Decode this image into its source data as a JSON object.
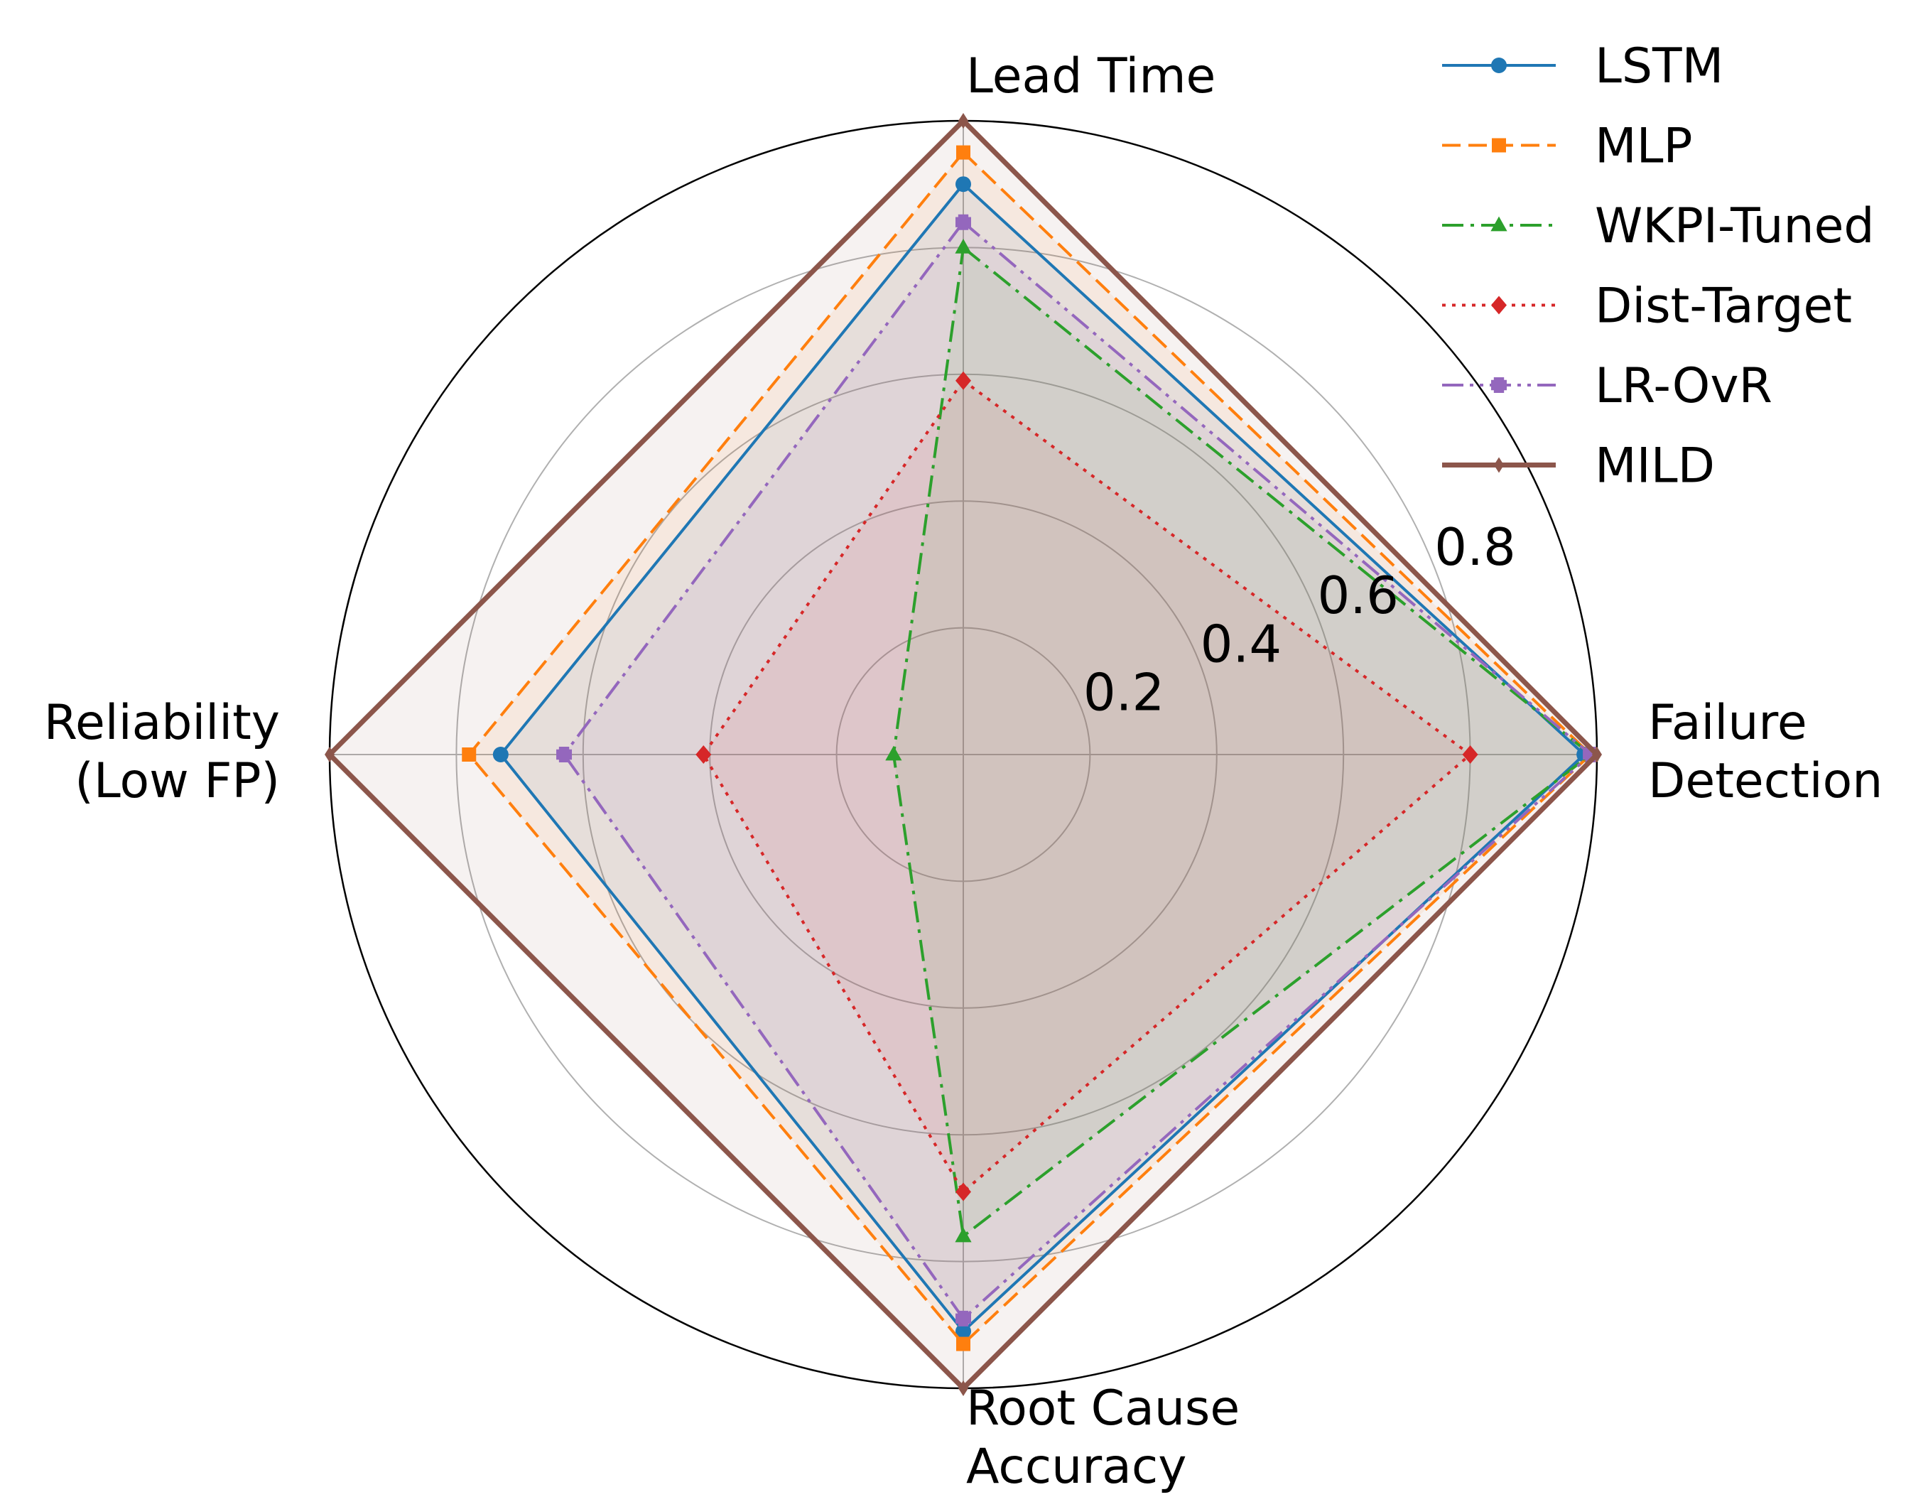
{
  "chart_data": {
    "type": "radar",
    "axes": [
      "Lead Time",
      "Failure Detection",
      "Root Cause Accuracy",
      "Reliability (Low FP)"
    ],
    "axis_label_lines": [
      [
        "Lead Time"
      ],
      [
        "Failure",
        "Detection"
      ],
      [
        "Root Cause",
        "Accuracy"
      ],
      [
        "Reliability",
        "(Low FP)"
      ]
    ],
    "r_range": [
      0,
      1
    ],
    "r_ticks": [
      0.2,
      0.4,
      0.6,
      0.8
    ],
    "r_tick_labels": [
      "0.2",
      "0.4",
      "0.6",
      "0.8"
    ],
    "grid": true,
    "legend_position": "top-right",
    "series": [
      {
        "name": "LSTM",
        "values": [
          0.9,
          0.98,
          0.91,
          0.73
        ],
        "color": "#1f77b4",
        "linestyle": "solid",
        "marker": "circle"
      },
      {
        "name": "MLP",
        "values": [
          0.95,
          0.99,
          0.93,
          0.78
        ],
        "color": "#ff7f0e",
        "linestyle": "dashed",
        "marker": "square"
      },
      {
        "name": "WKPI-Tuned",
        "values": [
          0.8,
          0.99,
          0.76,
          0.11
        ],
        "color": "#2ca02c",
        "linestyle": "dashdot",
        "marker": "triangle"
      },
      {
        "name": "Dist-Target",
        "values": [
          0.59,
          0.8,
          0.69,
          0.41
        ],
        "color": "#d62728",
        "linestyle": "dotted",
        "marker": "diamond"
      },
      {
        "name": "LR-OvR",
        "values": [
          0.84,
          0.99,
          0.89,
          0.63
        ],
        "color": "#9467bd",
        "linestyle": "dashdotdot",
        "marker": "plus"
      },
      {
        "name": "MILD",
        "values": [
          1.0,
          1.0,
          1.0,
          1.0
        ],
        "color": "#8c564b",
        "linestyle": "solid",
        "marker": "thin-diamond"
      }
    ]
  }
}
